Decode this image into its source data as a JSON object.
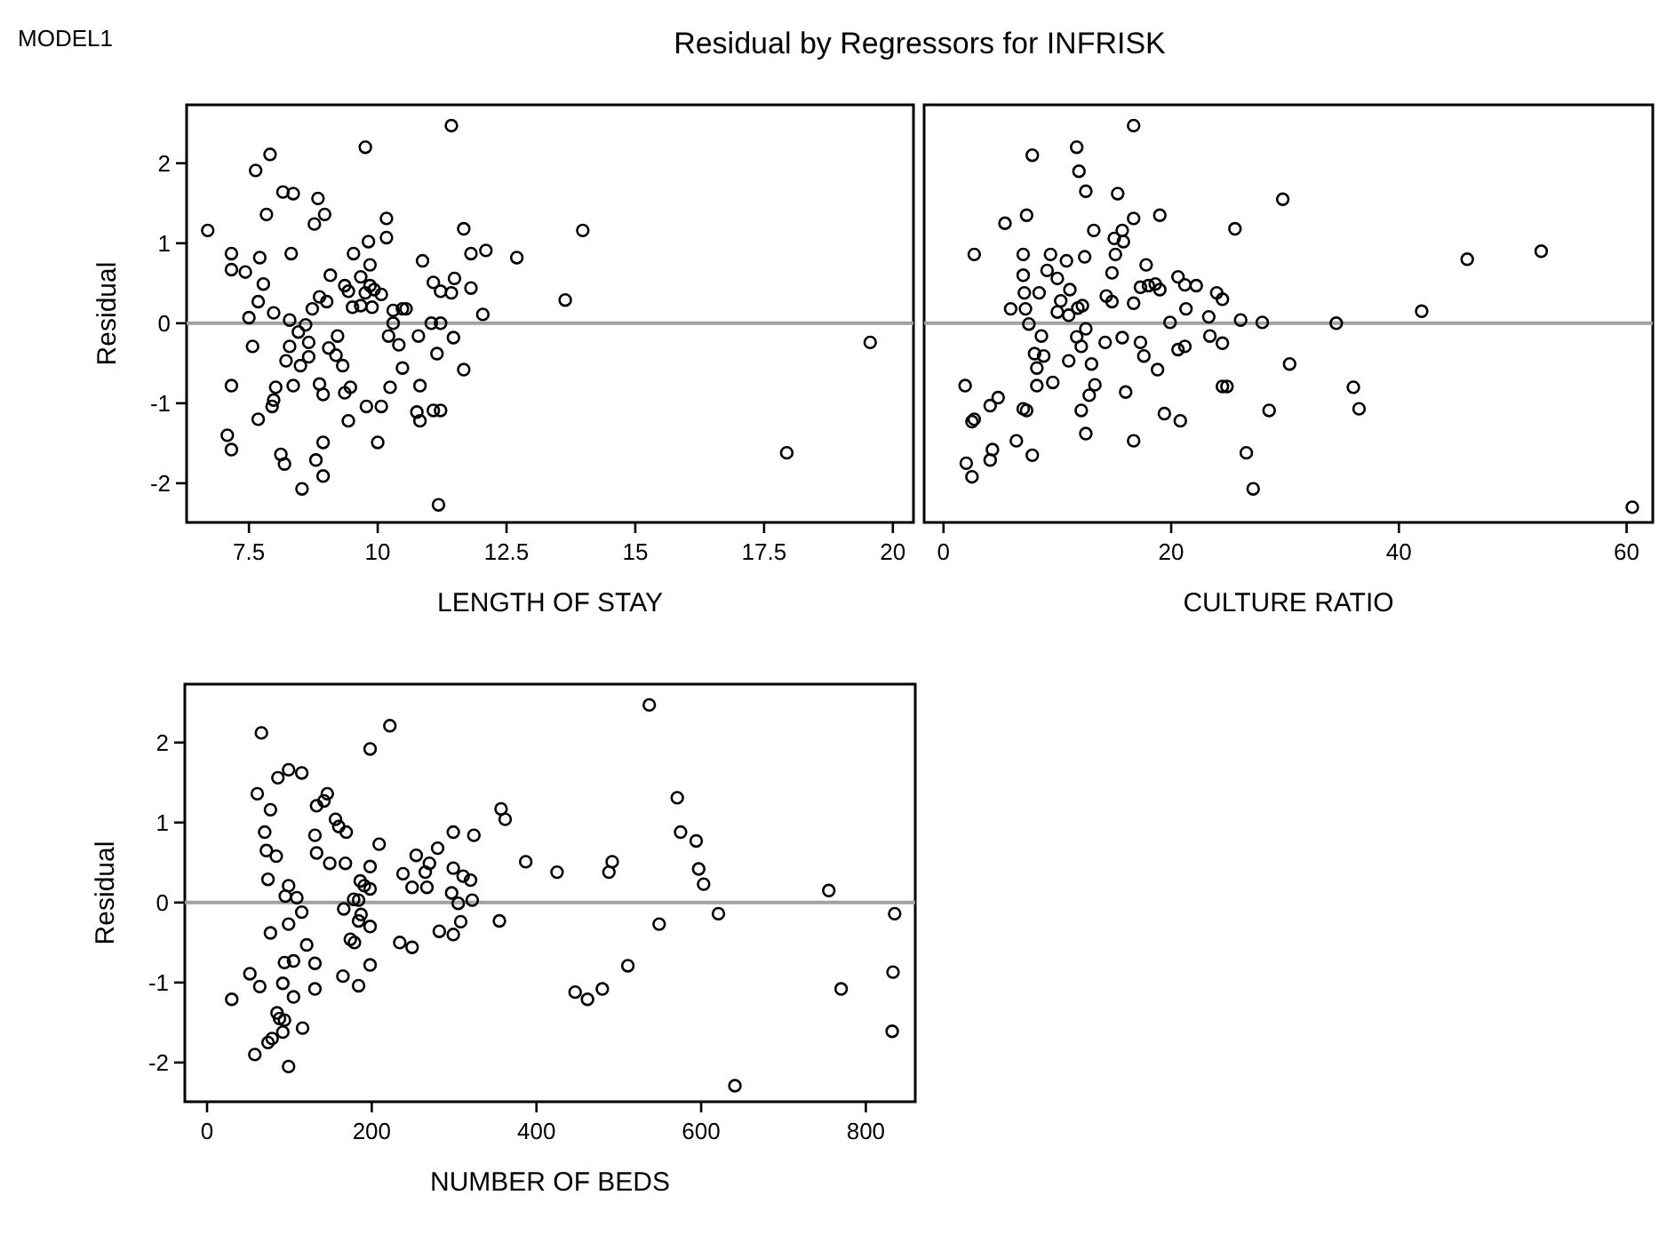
{
  "chart_data": [
    {
      "type": "scatter",
      "title": "Residual by Regressors for INFRISK",
      "annotations": [
        "MODEL1"
      ],
      "xlabel": "LENGTH OF STAY",
      "ylabel": "Residual",
      "xlim": [
        6.29,
        20.4
      ],
      "ylim": [
        -2.49,
        2.73
      ],
      "xticks": [
        7.5,
        10,
        12.5,
        15,
        17.5,
        20
      ],
      "yticks": [
        -2,
        -1,
        0,
        1,
        2
      ],
      "marker": "circle",
      "grid": false,
      "ref_lines": [
        {
          "axis": "y",
          "value": 0,
          "color": "#a0a0a0"
        }
      ],
      "series": [
        {
          "color": "#000000",
          "x": [
            11.43,
            9.76,
            7.91,
            7.63,
            8.16,
            8.36,
            8.84,
            7.84,
            8.97,
            8.77,
            10.17,
            6.7,
            11.67,
            9.82,
            10.17,
            7.16,
            7.71,
            8.32,
            9.53,
            9.85,
            10.87,
            11.81,
            12.1,
            12.7,
            7.16,
            7.43,
            9.08,
            7.78,
            9.36,
            9.67,
            9.85,
            11.08,
            11.49,
            11.22,
            11.43,
            11.81,
            9.43,
            9.76,
            9.93,
            10.07,
            8.87,
            9.01,
            7.68,
            8.73,
            9.51,
            9.89,
            9.67,
            10.3,
            10.48,
            10.55,
            7.98,
            7.5,
            8.29,
            12.04,
            8.6,
            10.3,
            11.04,
            11.22,
            8.46,
            10.21,
            9.22,
            10.79,
            11.47,
            8.66,
            10.41,
            7.57,
            8.29,
            9.05,
            9.19,
            8.66,
            11.15,
            8.22,
            8.5,
            9.32,
            10.48,
            11.67,
            7.16,
            8.36,
            8.02,
            8.87,
            10.24,
            10.82,
            9.47,
            9.36,
            8.94,
            7.98,
            7.95,
            9.78,
            10.07,
            10.76,
            11.08,
            11.22,
            10.82,
            7.68,
            9.43,
            7.08,
            7.16,
            8.94,
            10,
            8.12,
            8.19,
            8.8,
            8.94,
            8.53,
            11.18,
            13.98,
            13.64,
            19.56,
            17.94
          ],
          "values": [
            2.47,
            2.2,
            2.11,
            1.91,
            1.64,
            1.62,
            1.56,
            1.36,
            1.36,
            1.24,
            1.31,
            1.16,
            1.18,
            1.02,
            1.07,
            0.87,
            0.82,
            0.87,
            0.87,
            0.73,
            0.78,
            0.87,
            0.91,
            0.82,
            0.67,
            0.64,
            0.6,
            0.49,
            0.47,
            0.58,
            0.47,
            0.51,
            0.56,
            0.4,
            0.38,
            0.44,
            0.4,
            0.38,
            0.42,
            0.36,
            0.33,
            0.27,
            0.27,
            0.18,
            0.2,
            0.2,
            0.22,
            0.16,
            0.18,
            0.18,
            0.13,
            0.07,
            0.04,
            0.11,
            -0.02,
            0,
            0,
            0,
            -0.11,
            -0.16,
            -0.16,
            -0.16,
            -0.18,
            -0.24,
            -0.27,
            -0.29,
            -0.29,
            -0.31,
            -0.4,
            -0.42,
            -0.38,
            -0.47,
            -0.53,
            -0.53,
            -0.56,
            -0.58,
            -0.78,
            -0.78,
            -0.8,
            -0.76,
            -0.8,
            -0.78,
            -0.8,
            -0.87,
            -0.89,
            -0.96,
            -1.04,
            -1.04,
            -1.04,
            -1.11,
            -1.09,
            -1.09,
            -1.22,
            -1.2,
            -1.22,
            -1.4,
            -1.58,
            -1.49,
            -1.49,
            -1.64,
            -1.76,
            -1.71,
            -1.91,
            -2.07,
            -2.27,
            1.16,
            0.29,
            -0.24,
            -1.62
          ]
        }
      ]
    },
    {
      "type": "scatter",
      "xlabel": "CULTURE RATIO",
      "xlim": [
        -1.7,
        62.3
      ],
      "ylim": [
        -2.49,
        2.73
      ],
      "xticks": [
        0,
        20,
        40,
        60
      ],
      "yticks": [
        -2,
        -1,
        0,
        1,
        2
      ],
      "tick_labels": "x",
      "marker": "circle",
      "grid": false,
      "ref_lines": [
        {
          "axis": "y",
          "value": 0,
          "color": "#a0a0a0"
        }
      ],
      "series": [
        {
          "color": "#000000",
          "x": [
            16.7,
            11.7,
            7.8,
            11.9,
            12.5,
            15.3,
            29.8,
            5.4,
            7.3,
            16.7,
            19,
            25.6,
            13.2,
            15.7,
            15,
            15.8,
            2.7,
            7,
            9.4,
            15.1,
            10.8,
            12.4,
            17.8,
            7,
            9.1,
            10,
            14.8,
            20.6,
            21.2,
            22.2,
            17.3,
            18,
            18.6,
            19,
            7.1,
            8.4,
            11.1,
            14.3,
            24,
            24.5,
            10.3,
            14.8,
            16.7,
            12.2,
            5.9,
            7.2,
            10,
            11,
            11.8,
            21.3,
            23.3,
            26.1,
            28,
            7.5,
            19.9,
            12.5,
            8.6,
            11.7,
            15.7,
            23.4,
            12.1,
            14.2,
            17.3,
            24.5,
            20.6,
            21.2,
            8,
            8.8,
            17.6,
            11,
            13,
            30.4,
            8.2,
            18.8,
            1.9,
            8.2,
            9.6,
            13.3,
            24.5,
            24.9,
            12.8,
            16,
            4.8,
            4.1,
            7,
            7.3,
            28.6,
            12.1,
            19.4,
            20.8,
            2.7,
            2.5,
            12.5,
            16.7,
            6.4,
            4.3,
            4.1,
            7.8,
            26.6,
            2,
            2.5,
            27.2,
            36,
            36.5,
            34.5,
            42,
            46,
            52.5,
            60.5
          ],
          "values": [
            2.47,
            2.2,
            2.1,
            1.9,
            1.65,
            1.62,
            1.55,
            1.25,
            1.35,
            1.31,
            1.35,
            1.18,
            1.16,
            1.16,
            1.06,
            1.02,
            0.86,
            0.86,
            0.86,
            0.86,
            0.78,
            0.83,
            0.73,
            0.6,
            0.66,
            0.56,
            0.63,
            0.58,
            0.48,
            0.47,
            0.45,
            0.47,
            0.49,
            0.42,
            0.38,
            0.38,
            0.42,
            0.34,
            0.38,
            0.3,
            0.28,
            0.27,
            0.25,
            0.22,
            0.18,
            0.18,
            0.14,
            0.1,
            0.19,
            0.18,
            0.08,
            0.04,
            0.01,
            -0.01,
            0.01,
            -0.07,
            -0.16,
            -0.17,
            -0.18,
            -0.16,
            -0.29,
            -0.24,
            -0.24,
            -0.25,
            -0.33,
            -0.29,
            -0.38,
            -0.41,
            -0.41,
            -0.47,
            -0.51,
            -0.51,
            -0.56,
            -0.58,
            -0.78,
            -0.78,
            -0.74,
            -0.77,
            -0.79,
            -0.79,
            -0.9,
            -0.86,
            -0.93,
            -1.03,
            -1.07,
            -1.09,
            -1.09,
            -1.09,
            -1.13,
            -1.22,
            -1.2,
            -1.23,
            -1.38,
            -1.47,
            -1.47,
            -1.58,
            -1.71,
            -1.65,
            -1.62,
            -1.75,
            -1.92,
            -2.07,
            -0.8,
            -1.07,
            0,
            0.15,
            0.8,
            0.9,
            -2.3
          ]
        }
      ]
    },
    {
      "type": "scatter",
      "xlabel": "NUMBER OF BEDS",
      "ylabel": "Residual",
      "xlim": [
        -27,
        860
      ],
      "ylim": [
        -2.49,
        2.73
      ],
      "xticks": [
        0,
        200,
        400,
        600,
        800
      ],
      "yticks": [
        -2,
        -1,
        0,
        1,
        2
      ],
      "marker": "circle",
      "grid": false,
      "ref_lines": [
        {
          "axis": "y",
          "value": 0,
          "color": "#a0a0a0"
        }
      ],
      "series": [
        {
          "color": "#000000",
          "x": [
            66,
            222,
            198,
            86,
            99,
            115,
            61,
            146,
            133,
            142,
            77,
            156,
            160,
            169,
            70,
            131,
            72,
            84,
            133,
            149,
            168,
            209,
            254,
            280,
            299,
            324,
            357,
            362,
            270,
            198,
            238,
            249,
            267,
            265,
            299,
            311,
            320,
            74,
            99,
            95,
            109,
            186,
            198,
            191,
            178,
            184,
            297,
            305,
            322,
            115,
            166,
            187,
            99,
            184,
            198,
            77,
            308,
            355,
            282,
            299,
            174,
            179,
            121,
            234,
            249,
            94,
            105,
            131,
            198,
            52,
            64,
            92,
            165,
            184,
            131,
            105,
            30,
            85,
            94,
            88,
            116,
            92,
            79,
            74,
            58,
            99,
            387,
            425,
            488,
            492,
            537,
            571,
            575,
            594,
            597,
            603,
            755,
            621,
            549,
            835,
            511,
            447,
            462,
            480,
            770,
            833,
            832,
            641
          ],
          "values": [
            2.12,
            2.21,
            1.92,
            1.56,
            1.66,
            1.62,
            1.36,
            1.36,
            1.21,
            1.27,
            1.16,
            1.04,
            0.95,
            0.88,
            0.88,
            0.84,
            0.65,
            0.58,
            0.62,
            0.49,
            0.49,
            0.73,
            0.59,
            0.68,
            0.88,
            0.84,
            1.17,
            1.04,
            0.49,
            0.45,
            0.36,
            0.19,
            0.19,
            0.38,
            0.43,
            0.33,
            0.28,
            0.29,
            0.21,
            0.08,
            0.06,
            0.27,
            0.17,
            0.21,
            0.04,
            0.03,
            0.12,
            -0.01,
            0.03,
            -0.12,
            -0.08,
            -0.15,
            -0.27,
            -0.23,
            -0.3,
            -0.38,
            -0.24,
            -0.23,
            -0.36,
            -0.4,
            -0.46,
            -0.5,
            -0.53,
            -0.5,
            -0.56,
            -0.75,
            -0.73,
            -0.76,
            -0.78,
            -0.89,
            -1.05,
            -1.01,
            -0.92,
            -1.04,
            -1.08,
            -1.18,
            -1.21,
            -1.38,
            -1.47,
            -1.45,
            -1.57,
            -1.62,
            -1.7,
            -1.75,
            -1.9,
            -2.05,
            0.51,
            0.38,
            0.38,
            0.51,
            2.47,
            1.31,
            0.88,
            0.77,
            0.42,
            0.23,
            0.15,
            -0.14,
            -0.27,
            -0.14,
            -0.79,
            -1.12,
            -1.21,
            -1.08,
            -1.08,
            -0.87,
            -1.61,
            -2.29
          ]
        }
      ]
    }
  ]
}
